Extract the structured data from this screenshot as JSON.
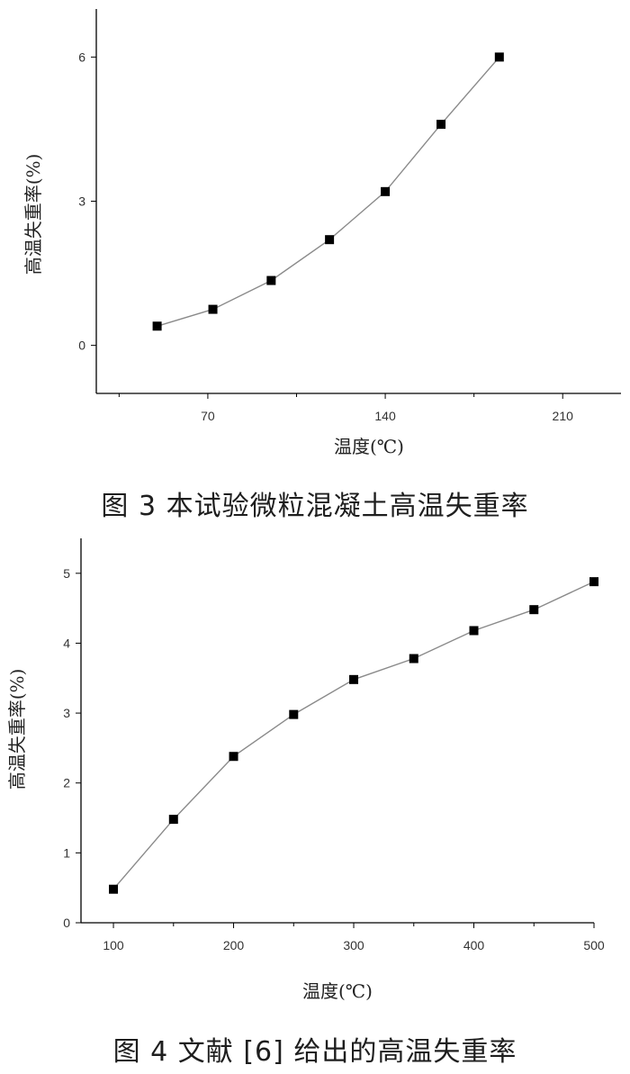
{
  "figures": [
    {
      "caption": "图 3   本试验微粒混凝土高温失重率",
      "chart_data": {
        "type": "line",
        "xlabel": "温度(℃)",
        "ylabel": "高温失重率(%)",
        "xlim": [
          26,
          233
        ],
        "ylim": [
          -1,
          7
        ],
        "xticks": [
          "70",
          "140",
          "210"
        ],
        "yticks": [
          "0",
          "3",
          "6"
        ],
        "series": [
          {
            "x": [
              50,
              72,
              95,
              118,
              140,
              162,
              185
            ],
            "y": [
              0.4,
              0.75,
              1.35,
              2.2,
              3.2,
              4.6,
              6.0
            ]
          }
        ]
      }
    },
    {
      "caption": "图 4   文献 [6] 给出的高温失重率",
      "chart_data": {
        "type": "line",
        "xlabel": "温度(℃)",
        "ylabel": "高温失重率(%)",
        "xlim": [
          73,
          500
        ],
        "ylim": [
          0,
          5.5
        ],
        "xticks": [
          "100",
          "200",
          "300",
          "400",
          "500"
        ],
        "yticks": [
          "0",
          "1",
          "2",
          "3",
          "4",
          "5"
        ],
        "series": [
          {
            "x": [
              100,
              150,
              200,
              250,
              300,
              350,
              400,
              450,
              500
            ],
            "y": [
              0.48,
              1.48,
              2.38,
              2.98,
              3.48,
              3.78,
              4.18,
              4.48,
              4.88
            ]
          }
        ]
      }
    }
  ],
  "colors": {
    "line": "#8a8a8a",
    "marker": "#000000",
    "axis": "#000000"
  }
}
